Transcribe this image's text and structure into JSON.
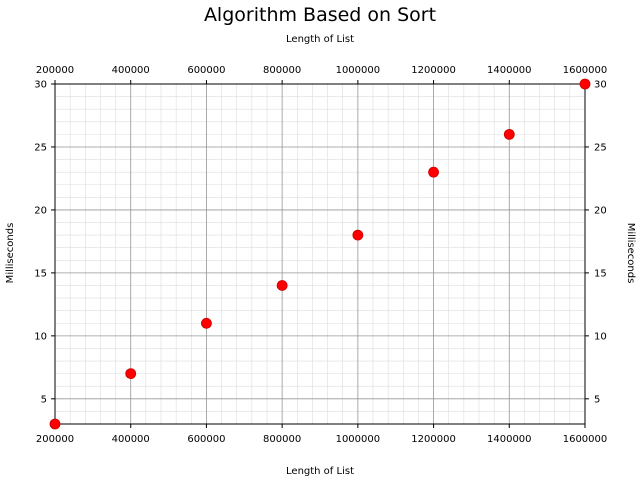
{
  "chart_data": {
    "type": "scatter",
    "title": "Algorithm Based on Sort",
    "xlabel": "Length of List",
    "x2label": "Length of List",
    "ylabel": "Milliseconds",
    "y2label": "Milliseconds",
    "xlim": [
      200000,
      1600000
    ],
    "ylim": [
      3,
      30
    ],
    "xticks": [
      200000,
      400000,
      600000,
      800000,
      1000000,
      1200000,
      1400000,
      1600000
    ],
    "xtick_labels": [
      "200000",
      "400000",
      "600000",
      "800000",
      "1000000",
      "1200000",
      "1400000",
      "1600000"
    ],
    "yticks": [
      5,
      10,
      15,
      20,
      25,
      30
    ],
    "ytick_labels": [
      "5",
      "10",
      "15",
      "20",
      "25",
      "30"
    ],
    "x_minor_step": 40000,
    "y_minor_step": 1,
    "grid": true,
    "colors": {
      "marker": "#ff0000",
      "marker_edge": "#cc0000",
      "major_grid": "#999999",
      "minor_grid": "#dddddd",
      "axes": "#000000"
    },
    "series": [
      {
        "x": [
          200000,
          400000,
          600000,
          800000,
          1000000,
          1200000,
          1400000,
          1600000
        ],
        "y": [
          3,
          7,
          11,
          14,
          18,
          23,
          26,
          30
        ]
      }
    ]
  }
}
